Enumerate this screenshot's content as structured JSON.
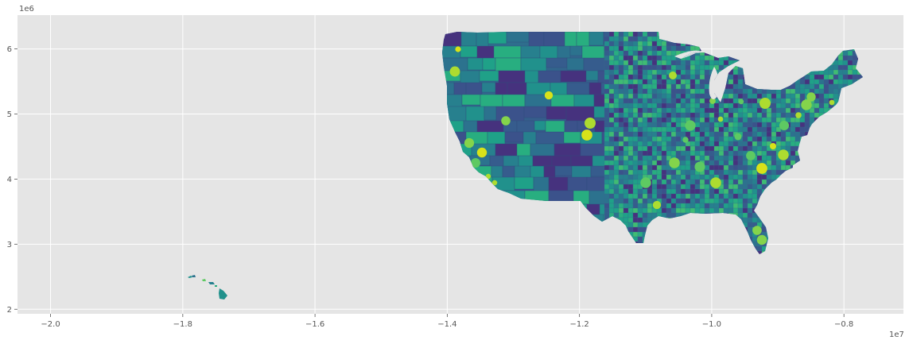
{
  "chart_data": {
    "type": "map",
    "title": "",
    "xlabel": "",
    "ylabel": "",
    "xlim": [
      -20500000,
      -7100000
    ],
    "ylim": [
      1930000,
      6520000
    ],
    "x_ticks": [
      -20000000,
      -18000000,
      -16000000,
      -14000000,
      -12000000,
      -10000000,
      -8000000
    ],
    "x_tick_labels": [
      "−2.0",
      "−1.8",
      "−1.6",
      "−1.4",
      "−1.2",
      "−1.0",
      "−0.8"
    ],
    "y_ticks": [
      2000000,
      3000000,
      4000000,
      5000000,
      6000000
    ],
    "y_tick_labels": [
      "2",
      "3",
      "4",
      "5",
      "6"
    ],
    "x_offset_label": "1e7",
    "y_offset_label": "1e6",
    "grid": true,
    "style": "ggplot",
    "colormap": "viridis",
    "colors": {
      "axes_background": "#e5e5e5",
      "grid": "#ffffff",
      "viridis_dark": "#443a83",
      "viridis_mid": "#21908d",
      "viridis_light": "#5ec962",
      "viridis_bright": "#c2df23"
    },
    "regions": [
      "contiguous-us-counties",
      "hawaii"
    ]
  }
}
